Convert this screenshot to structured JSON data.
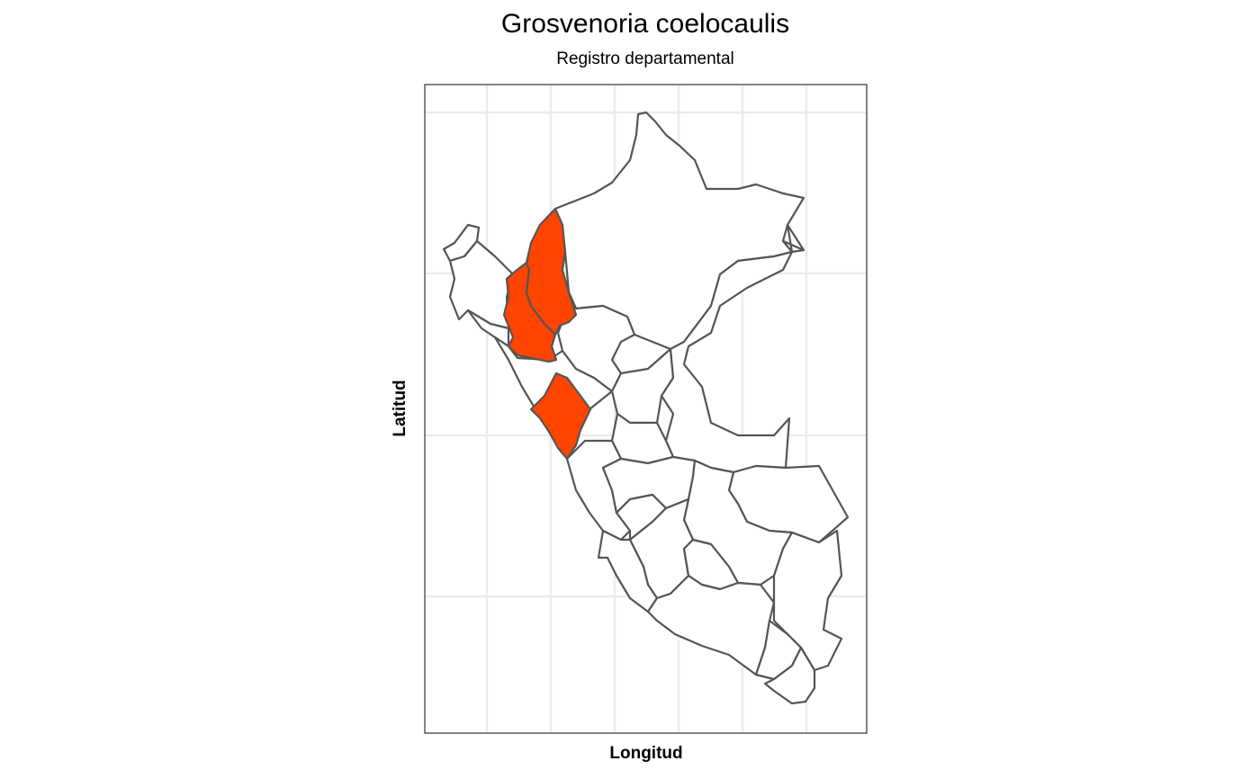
{
  "title": "Grosvenoria coelocaulis",
  "subtitle": "Registro departamental",
  "axes": {
    "xlabel": "Longitud",
    "ylabel": "Latitud"
  },
  "map": {
    "region": "Peru",
    "highlight_color": "#ff4500",
    "border_color": "#555555",
    "fill_color": "#ffffff",
    "grid": true,
    "highlighted_departments": [
      "Cajamarca",
      "Amazonas",
      "Ancash"
    ]
  }
}
